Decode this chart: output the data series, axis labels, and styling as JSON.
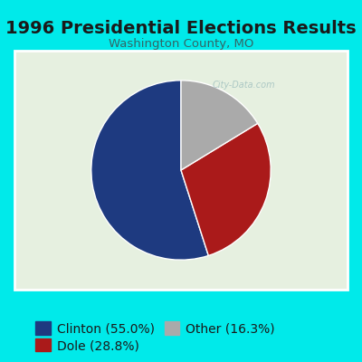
{
  "title": "1996 Presidential Elections Results",
  "subtitle": "Washington County, MO",
  "slices": [
    55.0,
    28.8,
    16.3
  ],
  "labels": [
    "Clinton (55.0%)",
    "Dole (28.8%)",
    "Other (16.3%)"
  ],
  "colors": [
    "#1e3a80",
    "#aa1a1a",
    "#aaaaaa"
  ],
  "background_outer": "#00eaea",
  "background_inner": "#e6f0e0",
  "title_color": "#1a1a1a",
  "subtitle_color": "#336666",
  "title_fontsize": 14,
  "subtitle_fontsize": 9.5,
  "legend_fontsize": 10,
  "startangle": 90,
  "watermark": "City-Data.com"
}
